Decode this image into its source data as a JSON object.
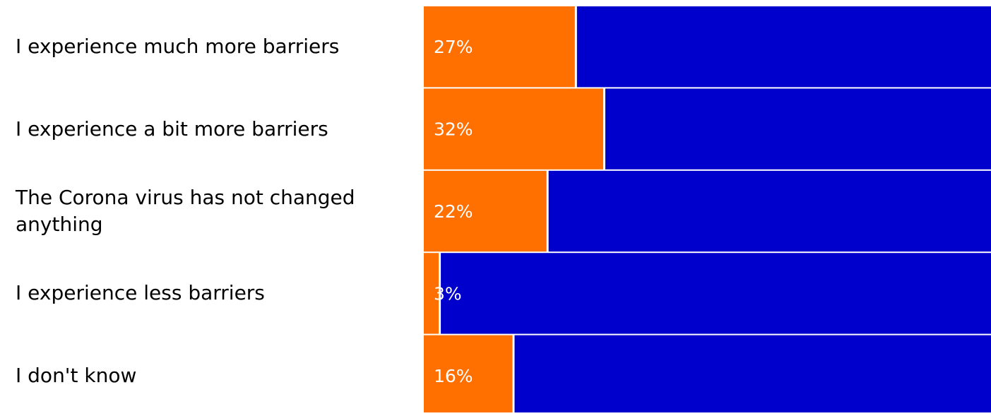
{
  "chart_data": {
    "type": "bar",
    "orientation": "horizontal",
    "stacked": true,
    "normalized": true,
    "categories": [
      "I experience much more barriers",
      "I experience a bit more barriers",
      "The Corona virus has not changed anything",
      "I experience less barriers",
      "I don't know"
    ],
    "series": [
      {
        "values": [
          27,
          32,
          22,
          3,
          16
        ],
        "labels": [
          "27%",
          "32%",
          "22%",
          "3%",
          "16%"
        ],
        "color": "#ff7000"
      },
      {
        "values": [
          73,
          68,
          78,
          97,
          84
        ],
        "color": "#0000cc"
      }
    ],
    "xlim": [
      0,
      100
    ],
    "grid": false,
    "legend": "none"
  }
}
